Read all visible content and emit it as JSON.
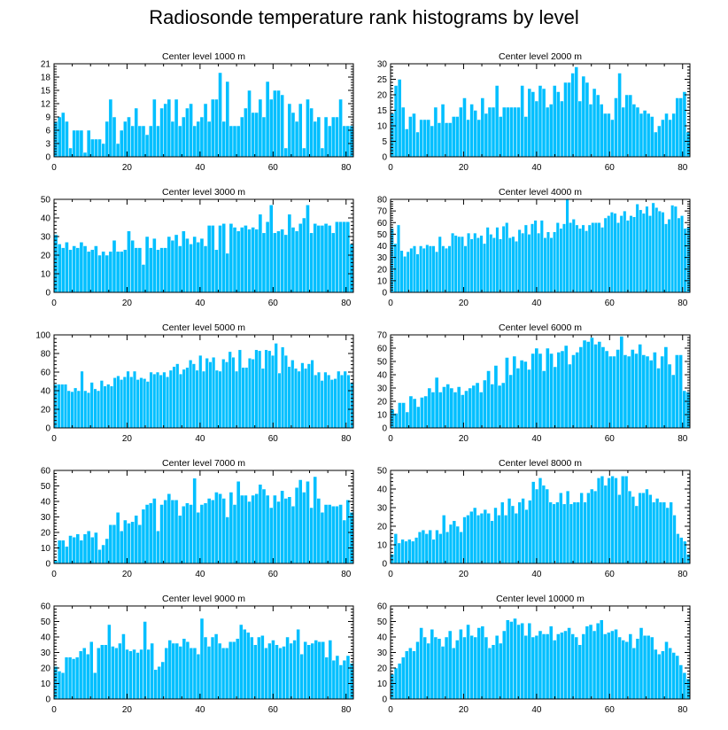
{
  "figure": {
    "title": "Radiosonde temperature rank histograms by level"
  },
  "colors": {
    "bar": "#00bfff",
    "bar_stroke": "#ffffff",
    "axis": "#000000"
  },
  "chart_data": [
    {
      "type": "bar",
      "title": "Center level 1000 m",
      "xlabel": "",
      "ylabel": "",
      "xlim": [
        0,
        82
      ],
      "ylim": [
        0,
        21
      ],
      "xticks": [
        0,
        20,
        40,
        60,
        80
      ],
      "yticks": [
        0,
        3,
        6,
        9,
        12,
        15,
        18,
        21
      ],
      "values": [
        8,
        9,
        10,
        8,
        2,
        6,
        6,
        6,
        1,
        6,
        4,
        4,
        4,
        3,
        8,
        13,
        9,
        3,
        6,
        8,
        9,
        7,
        11,
        7,
        7,
        5,
        7,
        13,
        7,
        11,
        12,
        13,
        8,
        13,
        7,
        9,
        11,
        12,
        7,
        8,
        9,
        12,
        8,
        13,
        13,
        19,
        8,
        17,
        7,
        7,
        7,
        9,
        11,
        15,
        10,
        10,
        13,
        9,
        17,
        13,
        15,
        15,
        14,
        2,
        12,
        10,
        8,
        12,
        2,
        13,
        11,
        8,
        9,
        2,
        9,
        7,
        9,
        9,
        13,
        7,
        7,
        7
      ]
    },
    {
      "type": "bar",
      "title": "Center level 2000 m",
      "xlabel": "",
      "ylabel": "",
      "xlim": [
        0,
        82
      ],
      "ylim": [
        0,
        30
      ],
      "xticks": [
        0,
        20,
        40,
        60,
        80
      ],
      "yticks": [
        0,
        5,
        10,
        15,
        20,
        25,
        30
      ],
      "values": [
        14,
        23,
        25,
        16,
        9,
        13,
        14,
        8,
        12,
        12,
        12,
        10,
        16,
        11,
        17,
        11,
        11,
        13,
        13,
        16,
        19,
        12,
        17,
        15,
        12,
        19,
        14,
        16,
        16,
        23,
        13,
        16,
        16,
        16,
        16,
        16,
        23,
        13,
        22,
        21,
        18,
        23,
        22,
        16,
        17,
        23,
        21,
        18,
        24,
        24,
        27,
        29,
        18,
        26,
        24,
        17,
        22,
        20,
        17,
        14,
        14,
        12,
        19,
        27,
        16,
        20,
        20,
        17,
        16,
        14,
        15,
        14,
        13,
        8,
        10,
        12,
        14,
        12,
        14,
        19,
        19,
        21,
        8
      ]
    },
    {
      "type": "bar",
      "title": "Center level 3000 m",
      "xlabel": "",
      "ylabel": "",
      "xlim": [
        0,
        82
      ],
      "ylim": [
        0,
        50
      ],
      "xticks": [
        0,
        20,
        40,
        60,
        80
      ],
      "yticks": [
        0,
        10,
        20,
        30,
        40,
        50
      ],
      "values": [
        31,
        26,
        24,
        27,
        23,
        25,
        24,
        27,
        25,
        22,
        23,
        25,
        20,
        22,
        20,
        22,
        28,
        22,
        22,
        23,
        33,
        28,
        24,
        24,
        15,
        30,
        24,
        29,
        23,
        24,
        24,
        30,
        28,
        31,
        25,
        33,
        29,
        26,
        30,
        27,
        29,
        25,
        36,
        36,
        23,
        36,
        37,
        21,
        37,
        35,
        33,
        35,
        36,
        34,
        35,
        34,
        42,
        32,
        38,
        47,
        32,
        33,
        34,
        31,
        42,
        35,
        33,
        37,
        40,
        47,
        32,
        37,
        36,
        36,
        37,
        36,
        32,
        38,
        38,
        38,
        38,
        26
      ]
    },
    {
      "type": "bar",
      "title": "Center level 4000 m",
      "xlabel": "",
      "ylabel": "",
      "xlim": [
        0,
        82
      ],
      "ylim": [
        0,
        80
      ],
      "xticks": [
        0,
        20,
        40,
        60,
        80
      ],
      "yticks": [
        0,
        10,
        20,
        30,
        40,
        50,
        60,
        70,
        80
      ],
      "values": [
        55,
        42,
        58,
        36,
        31,
        35,
        38,
        40,
        33,
        40,
        38,
        41,
        40,
        40,
        35,
        48,
        40,
        38,
        40,
        51,
        49,
        48,
        48,
        40,
        51,
        46,
        51,
        47,
        49,
        42,
        56,
        50,
        47,
        56,
        46,
        57,
        60,
        47,
        48,
        44,
        54,
        51,
        58,
        50,
        59,
        62,
        51,
        62,
        47,
        52,
        47,
        52,
        60,
        55,
        59,
        81,
        60,
        63,
        58,
        55,
        58,
        53,
        58,
        60,
        60,
        60,
        56,
        64,
        66,
        69,
        68,
        60,
        66,
        70,
        62,
        66,
        65,
        76,
        71,
        68,
        74,
        66,
        77,
        73,
        70,
        69,
        59,
        63,
        75,
        74,
        64,
        66,
        55,
        56
      ]
    },
    {
      "type": "bar",
      "title": "Center level 5000 m",
      "xlabel": "",
      "ylabel": "",
      "xlim": [
        0,
        82
      ],
      "ylim": [
        0,
        100
      ],
      "xticks": [
        0,
        20,
        40,
        60,
        80
      ],
      "yticks": [
        0,
        20,
        40,
        60,
        80,
        100
      ],
      "values": [
        47,
        47,
        47,
        47,
        40,
        39,
        43,
        40,
        61,
        40,
        38,
        49,
        42,
        40,
        51,
        45,
        47,
        45,
        54,
        56,
        52,
        55,
        61,
        55,
        61,
        52,
        54,
        53,
        50,
        60,
        58,
        60,
        57,
        60,
        55,
        62,
        66,
        69,
        58,
        63,
        65,
        73,
        69,
        62,
        78,
        61,
        75,
        71,
        76,
        62,
        61,
        74,
        71,
        82,
        76,
        61,
        84,
        65,
        65,
        75,
        74,
        84,
        83,
        64,
        84,
        83,
        78,
        91,
        59,
        87,
        78,
        66,
        73,
        64,
        61,
        70,
        64,
        69,
        73,
        57,
        60,
        51,
        60,
        57,
        52,
        53,
        61,
        57,
        61,
        57,
        49
      ]
    },
    {
      "type": "bar",
      "title": "Center level 6000 m",
      "xlabel": "",
      "ylabel": "",
      "xlim": [
        0,
        82
      ],
      "ylim": [
        0,
        70
      ],
      "xticks": [
        0,
        20,
        40,
        60,
        80
      ],
      "yticks": [
        0,
        10,
        20,
        30,
        40,
        50,
        60,
        70
      ],
      "values": [
        14,
        11,
        19,
        19,
        12,
        24,
        22,
        16,
        23,
        24,
        30,
        27,
        38,
        27,
        31,
        33,
        30,
        27,
        31,
        25,
        28,
        30,
        32,
        34,
        27,
        36,
        43,
        33,
        47,
        32,
        34,
        53,
        40,
        54,
        45,
        51,
        50,
        44,
        56,
        60,
        56,
        43,
        60,
        56,
        46,
        57,
        58,
        62,
        48,
        55,
        57,
        61,
        66,
        65,
        68,
        63,
        65,
        61,
        58,
        54,
        54,
        59,
        69,
        55,
        54,
        59,
        56,
        63,
        55,
        54,
        51,
        57,
        45,
        54,
        61,
        48,
        40,
        55,
        55,
        28,
        27
      ]
    },
    {
      "type": "bar",
      "title": "Center level 7000 m",
      "xlabel": "",
      "ylabel": "",
      "xlim": [
        0,
        82
      ],
      "ylim": [
        0,
        60
      ],
      "xticks": [
        0,
        20,
        40,
        60,
        80
      ],
      "yticks": [
        0,
        10,
        20,
        30,
        40,
        50,
        60
      ],
      "values": [
        2,
        15,
        15,
        11,
        18,
        17,
        19,
        15,
        19,
        21,
        17,
        20,
        9,
        12,
        16,
        25,
        25,
        33,
        21,
        28,
        26,
        27,
        31,
        25,
        35,
        38,
        39,
        42,
        21,
        38,
        41,
        45,
        41,
        41,
        31,
        37,
        39,
        38,
        55,
        33,
        38,
        39,
        42,
        41,
        46,
        45,
        42,
        30,
        46,
        38,
        53,
        44,
        44,
        40,
        44,
        45,
        51,
        48,
        44,
        36,
        44,
        40,
        47,
        42,
        43,
        37,
        49,
        54,
        46,
        53,
        36,
        56,
        42,
        33,
        38,
        38,
        37,
        37,
        38,
        28,
        41,
        33
      ]
    },
    {
      "type": "bar",
      "title": "Center level 8000 m",
      "xlabel": "",
      "ylabel": "",
      "xlim": [
        0,
        82
      ],
      "ylim": [
        0,
        50
      ],
      "xticks": [
        0,
        20,
        40,
        60,
        80
      ],
      "yticks": [
        0,
        10,
        20,
        30,
        40,
        50
      ],
      "values": [
        5,
        16,
        11,
        13,
        12,
        13,
        12,
        14,
        17,
        18,
        16,
        18,
        13,
        18,
        16,
        26,
        17,
        21,
        23,
        20,
        17,
        25,
        26,
        28,
        30,
        26,
        27,
        29,
        27,
        23,
        30,
        26,
        33,
        26,
        35,
        31,
        27,
        33,
        35,
        29,
        34,
        44,
        40,
        46,
        42,
        40,
        33,
        32,
        33,
        38,
        32,
        39,
        32,
        33,
        33,
        38,
        33,
        38,
        40,
        39,
        46,
        47,
        42,
        46,
        47,
        46,
        37,
        47,
        47,
        39,
        36,
        31,
        38,
        38,
        40,
        37,
        33,
        35,
        33,
        33,
        30,
        33,
        26,
        16,
        14,
        12,
        5
      ]
    },
    {
      "type": "bar",
      "title": "Center level 9000 m",
      "xlabel": "",
      "ylabel": "",
      "xlim": [
        0,
        82
      ],
      "ylim": [
        0,
        60
      ],
      "xticks": [
        0,
        20,
        40,
        60,
        80
      ],
      "yticks": [
        0,
        10,
        20,
        30,
        40,
        50,
        60
      ],
      "values": [
        21,
        18,
        17,
        27,
        27,
        26,
        27,
        31,
        33,
        29,
        37,
        17,
        33,
        35,
        35,
        48,
        34,
        33,
        36,
        42,
        32,
        31,
        32,
        30,
        32,
        50,
        32,
        36,
        19,
        21,
        24,
        33,
        38,
        36,
        36,
        34,
        39,
        37,
        33,
        33,
        29,
        52,
        40,
        34,
        40,
        42,
        36,
        33,
        33,
        37,
        37,
        39,
        48,
        45,
        43,
        40,
        35,
        40,
        41,
        33,
        36,
        38,
        35,
        33,
        34,
        40,
        36,
        38,
        45,
        29,
        37,
        35,
        36,
        38,
        37,
        37,
        27,
        38,
        25,
        28,
        22,
        25,
        28,
        23
      ]
    },
    {
      "type": "bar",
      "title": "Center level 10000 m",
      "xlabel": "",
      "ylabel": "",
      "xlim": [
        0,
        82
      ],
      "ylim": [
        0,
        60
      ],
      "xticks": [
        0,
        20,
        40,
        60,
        80
      ],
      "yticks": [
        0,
        10,
        20,
        30,
        40,
        50,
        60
      ],
      "values": [
        16,
        20,
        23,
        27,
        31,
        33,
        31,
        37,
        46,
        40,
        36,
        45,
        40,
        39,
        34,
        40,
        44,
        33,
        38,
        45,
        40,
        48,
        41,
        40,
        46,
        47,
        40,
        33,
        35,
        41,
        36,
        44,
        51,
        50,
        52,
        48,
        49,
        41,
        49,
        40,
        41,
        44,
        42,
        42,
        47,
        38,
        42,
        43,
        44,
        46,
        42,
        40,
        35,
        42,
        47,
        48,
        44,
        49,
        51,
        42,
        43,
        44,
        45,
        40,
        38,
        37,
        42,
        33,
        39,
        46,
        41,
        41,
        40,
        32,
        29,
        31,
        37,
        33,
        30,
        28,
        22,
        17,
        13
      ]
    }
  ]
}
